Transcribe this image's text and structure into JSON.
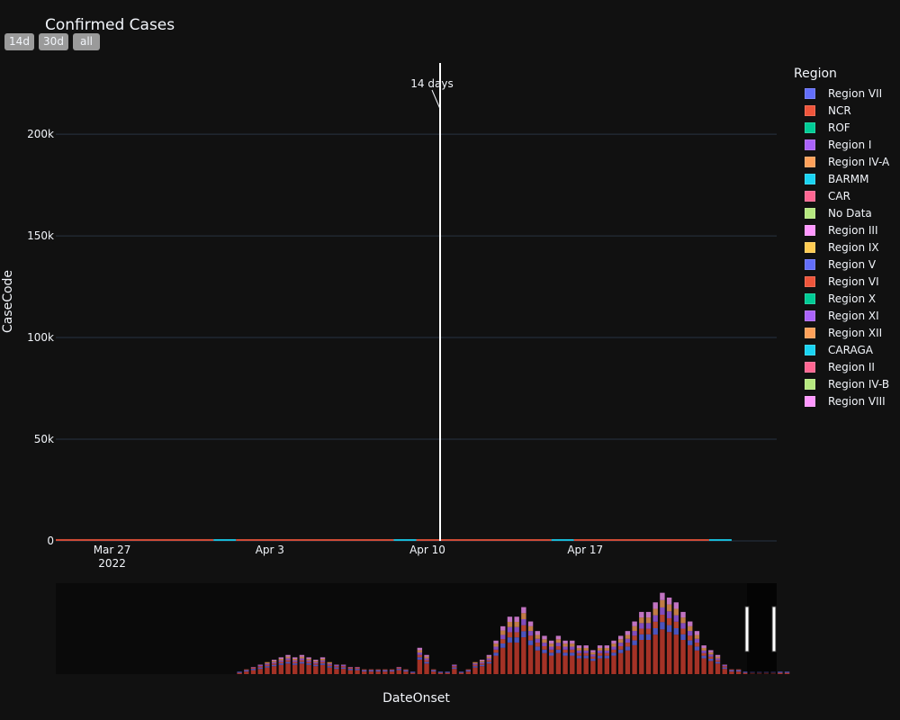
{
  "buttons": [
    {
      "label": "14d"
    },
    {
      "label": "30d"
    },
    {
      "label": "all"
    }
  ],
  "colors": {
    "background": "#111111",
    "plot_background": "#111111",
    "rangeslider_background": "#0a0a0a",
    "grid": "#283442",
    "text": "#f2f5fa",
    "shape_line": "#ffffff"
  },
  "chart_data": {
    "type": "bar",
    "stacked": true,
    "title": "Confirmed Cases",
    "xlabel": "DateOnset",
    "ylabel": "CaseCode",
    "ylim": [
      0,
      235000
    ],
    "yticks": [
      {
        "value": 0,
        "label": "0"
      },
      {
        "value": 50000,
        "label": "50k"
      },
      {
        "value": 100000,
        "label": "100k"
      },
      {
        "value": 150000,
        "label": "150k"
      },
      {
        "value": 200000,
        "label": "200k"
      }
    ],
    "xlim": [
      "2022-03-25",
      "2022-04-26"
    ],
    "xticks": [
      {
        "date": "2022-03-27",
        "label": "Mar 27",
        "sublabel": "2022"
      },
      {
        "date": "2022-04-03",
        "label": "Apr 3",
        "sublabel": ""
      },
      {
        "date": "2022-04-10",
        "label": "Apr 10",
        "sublabel": ""
      },
      {
        "date": "2022-04-17",
        "label": "Apr 17",
        "sublabel": ""
      }
    ],
    "grid": true,
    "legend_title": "Region",
    "legend_position": "right",
    "series": [
      {
        "name": "Region VII",
        "color": "#636efa"
      },
      {
        "name": "NCR",
        "color": "#EF553B"
      },
      {
        "name": "ROF",
        "color": "#00cc96"
      },
      {
        "name": "Region I",
        "color": "#ab63fa"
      },
      {
        "name": "Region IV-A",
        "color": "#FFA15A"
      },
      {
        "name": "BARMM",
        "color": "#19d3f3"
      },
      {
        "name": "CAR",
        "color": "#FF6692"
      },
      {
        "name": "No Data",
        "color": "#B6E880"
      },
      {
        "name": "Region III",
        "color": "#FF97FF"
      },
      {
        "name": "Region IX",
        "color": "#FECB52"
      },
      {
        "name": "Region V",
        "color": "#636efa"
      },
      {
        "name": "Region VI",
        "color": "#EF553B"
      },
      {
        "name": "Region X",
        "color": "#00cc96"
      },
      {
        "name": "Region XI",
        "color": "#ab63fa"
      },
      {
        "name": "Region XII",
        "color": "#FFA15A"
      },
      {
        "name": "CARAGA",
        "color": "#19d3f3"
      },
      {
        "name": "Region II",
        "color": "#FF6692"
      },
      {
        "name": "Region IV-B",
        "color": "#B6E880"
      },
      {
        "name": "Region VIII",
        "color": "#FF97FF"
      }
    ],
    "main_bars": [
      {
        "start": "2022-03-25",
        "end": "2022-04-01",
        "value": 900,
        "color": "#EF553B"
      },
      {
        "start": "2022-04-01",
        "end": "2022-04-02",
        "value": 200,
        "color": "#19d3f3"
      },
      {
        "start": "2022-04-02",
        "end": "2022-04-09",
        "value": 800,
        "color": "#EF553B"
      },
      {
        "start": "2022-04-09",
        "end": "2022-04-10",
        "value": 150,
        "color": "#19d3f3"
      },
      {
        "start": "2022-04-10",
        "end": "2022-04-16",
        "value": 300,
        "color": "#EF553B"
      },
      {
        "start": "2022-04-16",
        "end": "2022-04-17",
        "value": 120,
        "color": "#19d3f3"
      },
      {
        "start": "2022-04-17",
        "end": "2022-04-23",
        "value": 250,
        "color": "#EF553B"
      },
      {
        "start": "2022-04-23",
        "end": "2022-04-24",
        "value": 120,
        "color": "#19d3f3"
      }
    ],
    "annotation": {
      "text": "14 days",
      "date": "2022-04-08"
    },
    "rangeslider": {
      "periods": 104,
      "totals": [
        0,
        0,
        0,
        0,
        0,
        0,
        0,
        0,
        0,
        0,
        0,
        0,
        0,
        0,
        0,
        0,
        0,
        0,
        0,
        0,
        0,
        0,
        0,
        0,
        0,
        0,
        0.5,
        1,
        1.5,
        2,
        2.5,
        3,
        3.5,
        4,
        3.5,
        4,
        3.5,
        3,
        3.5,
        2.5,
        2,
        2,
        1.5,
        1.5,
        1,
        1,
        1,
        1,
        1,
        1.5,
        1,
        0.5,
        5.5,
        4,
        1,
        0.5,
        0.5,
        2,
        0.5,
        1,
        2.5,
        3,
        4,
        7,
        10,
        12,
        12,
        14,
        11,
        9,
        8,
        7,
        8,
        7,
        7,
        6,
        6,
        5,
        6,
        6,
        7,
        8,
        9,
        11,
        13,
        13,
        15,
        17,
        16,
        15,
        13,
        11,
        9,
        6,
        5,
        4,
        2,
        1,
        1,
        0.5,
        0.5,
        0.5,
        0.5,
        0.5,
        0.5,
        0.5
      ]
    }
  }
}
